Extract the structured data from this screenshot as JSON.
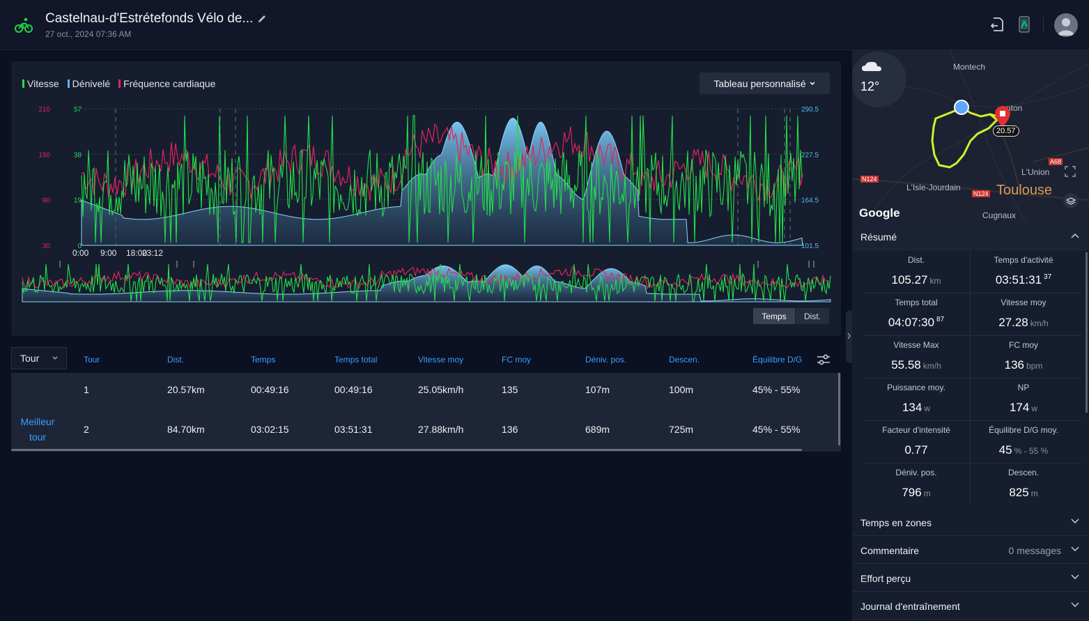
{
  "header": {
    "title": "Castelnau-d'Estrétefonds Vélo de...",
    "subtitle": "27 oct., 2024 07:36 AM"
  },
  "chart": {
    "legend": [
      {
        "label": "Vitesse",
        "color": "#22e04a"
      },
      {
        "label": "Dénivelé",
        "color": "#56b9f0"
      },
      {
        "label": "Fréquence cardiaque",
        "color": "#e0245e"
      }
    ],
    "custom_button": "Tableau personnalisé",
    "toggle_time": "Temps",
    "toggle_dist": "Dist.",
    "hr_ticks": [
      "210",
      "150",
      "90",
      "30"
    ],
    "speed_ticks": [
      "57",
      "38",
      "19",
      "0"
    ],
    "elev_ticks": [
      "290.5",
      "227.5",
      "164.5",
      "101.5"
    ],
    "x_ticks": [
      "0:00",
      "9:00",
      "18:00",
      "23:12"
    ]
  },
  "chart_data": {
    "type": "line",
    "title": "",
    "x": [
      "0:00",
      "9:00",
      "18:00",
      "23:12"
    ],
    "series": [
      {
        "name": "Vitesse",
        "axis_range": [
          0,
          57
        ]
      },
      {
        "name": "Dénivelé",
        "axis_range": [
          101.5,
          290.5
        ]
      },
      {
        "name": "Fréquence cardiaque",
        "axis_range": [
          30,
          210
        ]
      }
    ]
  },
  "laps": {
    "selector": "Tour",
    "columns": [
      "Tour",
      "Dist.",
      "Temps",
      "Temps total",
      "Vitesse moy",
      "FC moy",
      "Déniv. pos.",
      "Descen.",
      "Équilibre D/G"
    ],
    "best_label": "Meilleur tour",
    "rows": [
      {
        "cells": [
          "1",
          "20.57km",
          "00:49:16",
          "00:49:16",
          "25.05km/h",
          "135",
          "107m",
          "100m",
          "45% - 55%"
        ]
      },
      {
        "cells": [
          "2",
          "84.70km",
          "03:02:15",
          "03:51:31",
          "27.88km/h",
          "136",
          "689m",
          "725m",
          "45% - 55%"
        ]
      }
    ]
  },
  "map": {
    "temperature": "12°",
    "labels": {
      "montech": "Montech",
      "fronton": "nton",
      "isle": "L'Isle-Jourdain",
      "union": "L'Union",
      "cugnaux": "Cugnaux",
      "toulouse": "Toulouse",
      "n124a": "N124",
      "n124b": "N124",
      "a68": "A68"
    },
    "marker_value": "20.57",
    "brand": "Google"
  },
  "summary": {
    "title": "Résumé",
    "stats": [
      {
        "label": "Dist.",
        "value": "105.27",
        "unit": "km",
        "sup": ""
      },
      {
        "label": "Temps d'activité",
        "value": "03:51:31",
        "unit": "",
        "sup": "37"
      },
      {
        "label": "Temps total",
        "value": "04:07:30",
        "unit": "",
        "sup": "87"
      },
      {
        "label": "Vitesse moy",
        "value": "27.28",
        "unit": "km/h",
        "sup": ""
      },
      {
        "label": "Vitesse Max",
        "value": "55.58",
        "unit": "km/h",
        "sup": ""
      },
      {
        "label": "FC moy",
        "value": "136",
        "unit": "bpm",
        "sup": ""
      },
      {
        "label": "Puissance moy.",
        "value": "134",
        "unit": "w",
        "sup": ""
      },
      {
        "label": "NP",
        "value": "174",
        "unit": "w",
        "sup": ""
      },
      {
        "label": "Facteur d'intensité",
        "value": "0.77",
        "unit": "",
        "sup": ""
      },
      {
        "label": "Équilibre D/G moy.",
        "value": "45",
        "unit": "% - 55 %",
        "sup": ""
      },
      {
        "label": "Déniv. pos.",
        "value": "796",
        "unit": "m",
        "sup": ""
      },
      {
        "label": "Descen.",
        "value": "825",
        "unit": "m",
        "sup": ""
      }
    ]
  },
  "sections": [
    {
      "title": "Temps en zones",
      "extra": ""
    },
    {
      "title": "Commentaire",
      "extra": "0 messages"
    },
    {
      "title": "Effort perçu",
      "extra": ""
    },
    {
      "title": "Journal d'entraînement",
      "extra": ""
    }
  ]
}
